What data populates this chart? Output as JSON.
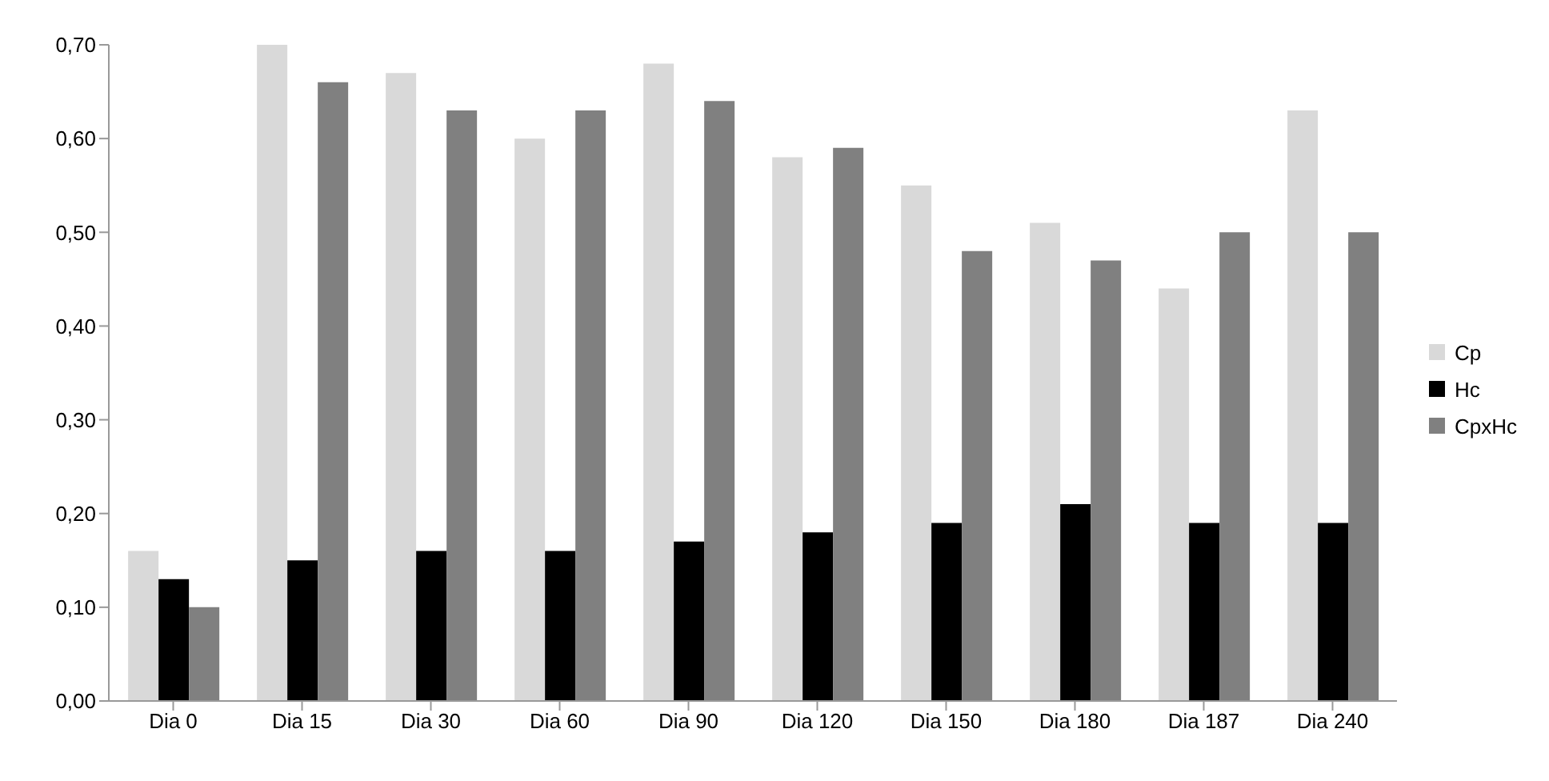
{
  "chart_data": {
    "type": "bar",
    "categories": [
      "Dia 0",
      "Dia 15",
      "Dia 30",
      "Dia 60",
      "Dia 90",
      "Dia 120",
      "Dia 150",
      "Dia 180",
      "Dia 187",
      "Dia 240"
    ],
    "series": [
      {
        "name": "Cp",
        "color": "#d9d9d9",
        "values": [
          0.16,
          0.7,
          0.67,
          0.6,
          0.68,
          0.58,
          0.55,
          0.51,
          0.44,
          0.63
        ]
      },
      {
        "name": "Hc",
        "color": "#000000",
        "values": [
          0.13,
          0.15,
          0.16,
          0.16,
          0.17,
          0.18,
          0.19,
          0.21,
          0.19,
          0.19
        ]
      },
      {
        "name": "CpxHc",
        "color": "#808080",
        "values": [
          0.1,
          0.66,
          0.63,
          0.63,
          0.64,
          0.59,
          0.48,
          0.47,
          0.5,
          0.5
        ]
      }
    ],
    "ylim": [
      0,
      0.7
    ],
    "yticks": [
      {
        "value": 0,
        "label": "0,00"
      },
      {
        "value": 0.1,
        "label": "0,10"
      },
      {
        "value": 0.2,
        "label": "0,20"
      },
      {
        "value": 0.3,
        "label": "0,30"
      },
      {
        "value": 0.4,
        "label": "0,40"
      },
      {
        "value": 0.5,
        "label": "0,50"
      },
      {
        "value": 0.6,
        "label": "0,60"
      },
      {
        "value": 0.7,
        "label": "0,70"
      }
    ],
    "grid": false,
    "legend": "right"
  }
}
